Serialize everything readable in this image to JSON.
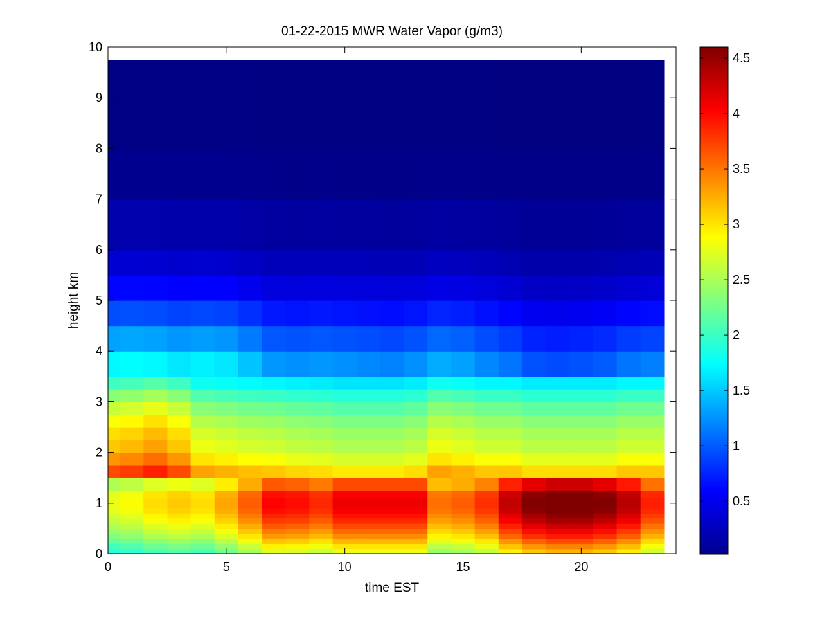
{
  "chart_data": {
    "type": "heatmap",
    "title": "01-22-2015 MWR Water Vapor (g/m3)",
    "xlabel": "time EST",
    "ylabel": "height km",
    "xlim": [
      0,
      24
    ],
    "ylim": [
      0,
      10
    ],
    "x_ticks": [
      "0",
      "5",
      "10",
      "15",
      "20"
    ],
    "x_tick_values": [
      0,
      5,
      10,
      15,
      20
    ],
    "y_ticks": [
      "0",
      "1",
      "2",
      "3",
      "4",
      "5",
      "6",
      "7",
      "8",
      "9",
      "10"
    ],
    "y_tick_values": [
      0,
      1,
      2,
      3,
      4,
      5,
      6,
      7,
      8,
      9,
      10
    ],
    "colorbar": {
      "colormap": "jet",
      "range": [
        0.02,
        4.6
      ],
      "ticks": [
        "0.5",
        "1",
        "1.5",
        "2",
        "2.5",
        "3",
        "3.5",
        "4",
        "4.5"
      ],
      "tick_values": [
        0.5,
        1,
        1.5,
        2,
        2.5,
        3,
        3.5,
        4,
        4.5
      ]
    },
    "time_hours": [
      0,
      1,
      2,
      3,
      4,
      5,
      6,
      7,
      8,
      9,
      10,
      11,
      12,
      13,
      14,
      15,
      16,
      17,
      18,
      19,
      20,
      21,
      22,
      23
    ],
    "profile_heights_km": [
      0,
      0.1,
      0.2,
      0.3,
      0.4,
      0.5,
      0.6,
      0.7,
      0.8,
      0.9,
      1.0,
      1.1,
      1.25,
      1.5,
      1.75,
      2.0,
      2.25,
      2.5,
      2.75,
      3.0,
      3.25,
      3.5,
      4.0,
      4.5,
      5.0,
      5.5,
      6.0,
      7.0,
      8.0,
      9.75
    ],
    "profile_reference_g_m3": [
      2.8,
      3.0,
      3.2,
      3.4,
      3.55,
      3.7,
      3.85,
      3.95,
      4.05,
      4.1,
      4.1,
      4.05,
      3.7,
      3.3,
      3.0,
      2.8,
      2.7,
      2.55,
      2.35,
      2.1,
      1.8,
      1.55,
      1.2,
      0.85,
      0.55,
      0.35,
      0.2,
      0.08,
      0.04,
      0.02
    ],
    "time_scale_low_levels": [
      0.68,
      0.7,
      0.74,
      0.76,
      0.74,
      0.8,
      0.88,
      0.98,
      0.97,
      0.94,
      1.0,
      1.0,
      1.0,
      1.0,
      0.86,
      0.88,
      0.93,
      1.05,
      1.12,
      1.15,
      1.15,
      1.12,
      1.06,
      0.95
    ],
    "time_scale_mid_levels": [
      1.12,
      1.14,
      1.18,
      1.12,
      1.0,
      0.98,
      0.96,
      0.95,
      0.93,
      0.92,
      0.9,
      0.9,
      0.9,
      0.92,
      1.0,
      0.98,
      0.95,
      0.95,
      0.92,
      0.92,
      0.92,
      0.92,
      0.95,
      0.95
    ],
    "time_scale_upper_levels": [
      1.1,
      1.12,
      1.1,
      1.05,
      1.08,
      1.05,
      0.95,
      0.82,
      0.8,
      0.82,
      0.8,
      0.78,
      0.76,
      0.8,
      0.88,
      0.85,
      0.78,
      0.72,
      0.62,
      0.6,
      0.62,
      0.65,
      0.72,
      0.75
    ]
  }
}
